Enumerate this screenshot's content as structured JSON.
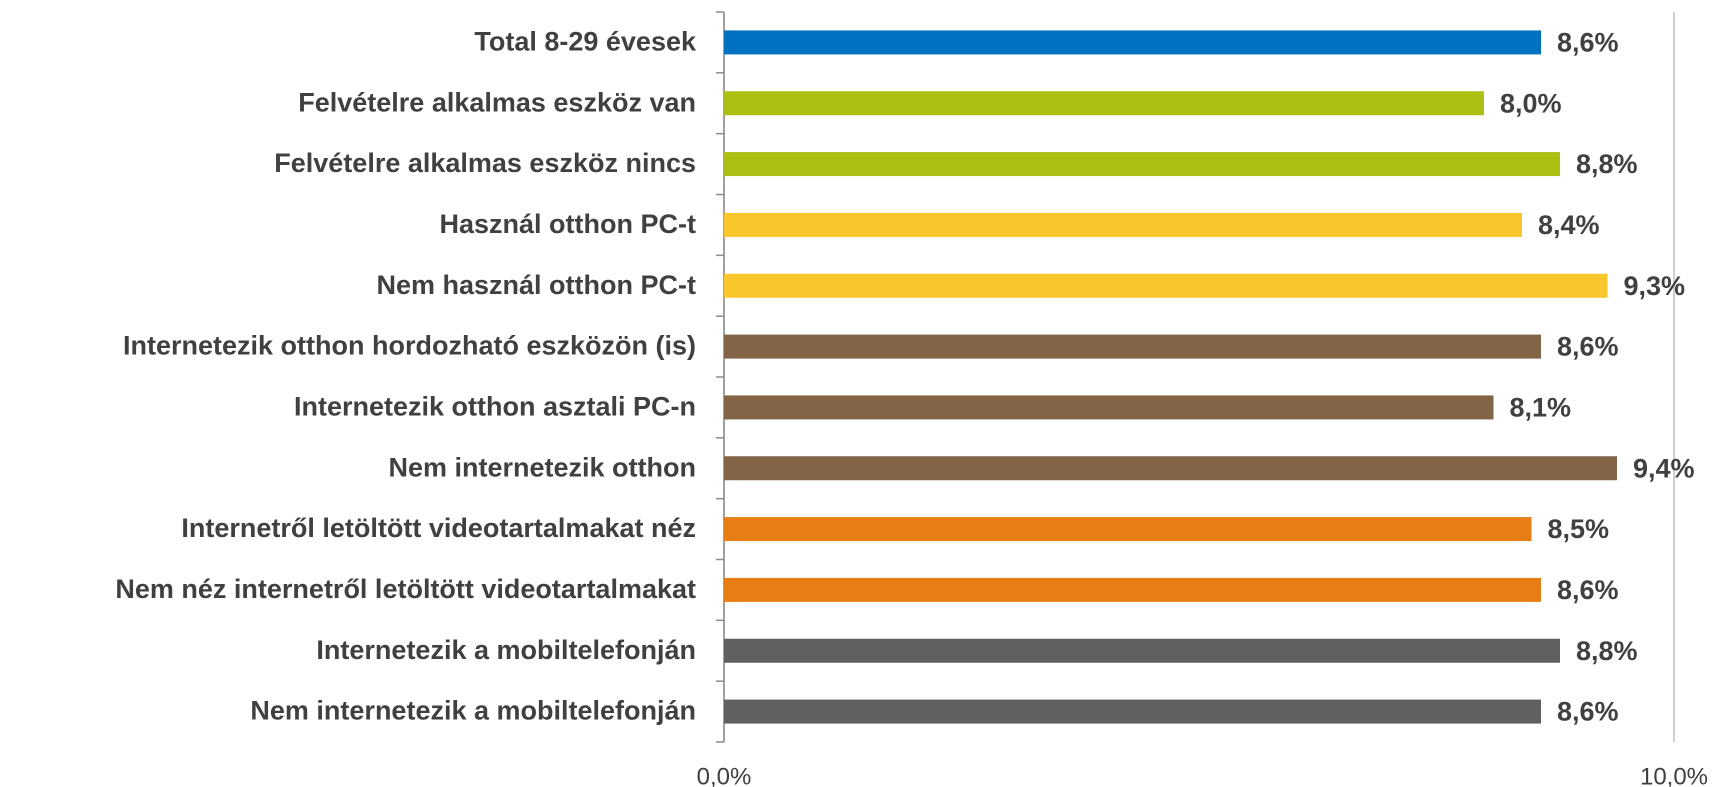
{
  "chart_data": {
    "type": "bar",
    "orientation": "horizontal",
    "categories": [
      "Total 8-29 évesek",
      "Felvételre alkalmas eszköz van",
      "Felvételre alkalmas eszköz nincs",
      "Használ otthon PC-t",
      "Nem használ otthon PC-t",
      "Internetezik otthon hordozható eszközön (is)",
      "Internetezik otthon asztali PC-n",
      "Nem internetezik otthon",
      "Internetről letöltött videotartalmakat néz",
      "Nem néz internetről letöltött videotartalmakat",
      "Internetezik a mobiltelefonján",
      "Nem internetezik a mobiltelefonján"
    ],
    "values": [
      8.6,
      8.0,
      8.8,
      8.4,
      9.3,
      8.6,
      8.1,
      9.4,
      8.5,
      8.6,
      8.8,
      8.6
    ],
    "value_labels": [
      "8,6%",
      "8,0%",
      "8,8%",
      "8,4%",
      "9,3%",
      "8,6%",
      "8,1%",
      "9,4%",
      "8,5%",
      "8,6%",
      "8,8%",
      "8,6%"
    ],
    "colors": [
      "#0070c0",
      "#adbf12",
      "#adbf12",
      "#f9c62b",
      "#f9c62b",
      "#826446",
      "#826446",
      "#826446",
      "#e67e14",
      "#e67e14",
      "#606060",
      "#606060"
    ],
    "xlim": [
      0,
      10
    ],
    "xticks": [
      {
        "value": 0,
        "label": "0,0%"
      },
      {
        "value": 10,
        "label": "10,0%"
      }
    ]
  }
}
